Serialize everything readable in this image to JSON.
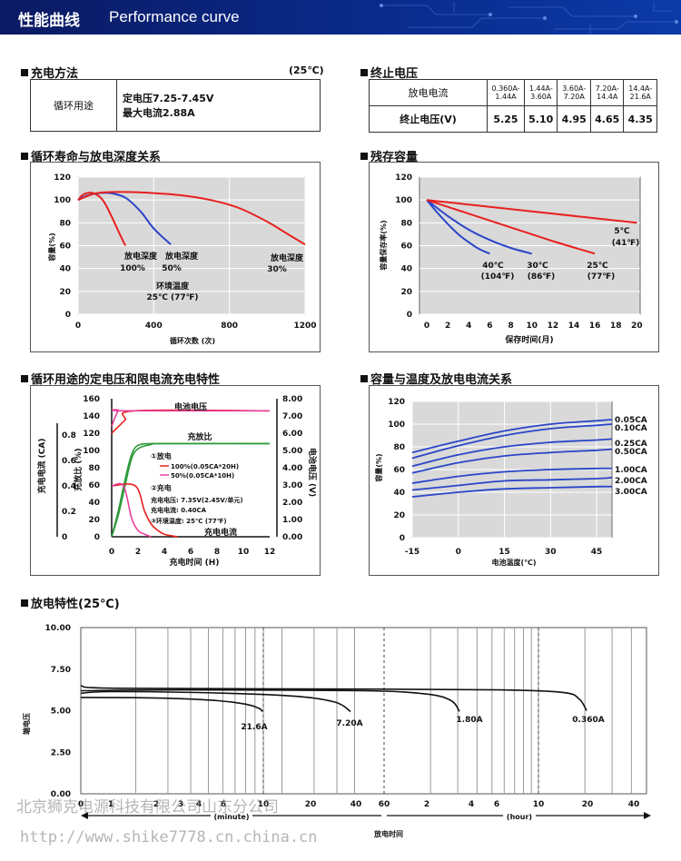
{
  "banner": {
    "title_cn": "性能曲线",
    "title_en": "Performance curve"
  },
  "charging_method": {
    "title": "充电方法",
    "temp": "(25℃)",
    "use": "循环用途",
    "line1": "定电压7.25-7.45V",
    "line2": "最大电流2.88A"
  },
  "cutoff_voltage": {
    "title": "终止电压",
    "row1_label": "放电电流",
    "row2_label": "终止电压(V)",
    "currents": [
      [
        "0.360A-",
        "1.44A"
      ],
      [
        "1.44A-",
        "3.60A"
      ],
      [
        "3.60A-",
        "7.20A"
      ],
      [
        "7.20A-",
        "14.4A"
      ],
      [
        "14.4A-",
        "21.6A"
      ]
    ],
    "voltages": [
      "5.25",
      "5.10",
      "4.95",
      "4.65",
      "4.35"
    ]
  },
  "cycle_life": {
    "title": "循环寿命与放电深度关系",
    "ylabel": "容量(%)",
    "xlabel": "循环次数 (次)",
    "xticks": [
      "0",
      "400",
      "800",
      "1200"
    ],
    "yticks": [
      "0",
      "20",
      "40",
      "60",
      "80",
      "100",
      "120"
    ],
    "labels": [
      "放电深度",
      "100%",
      "放电深度",
      "50%",
      "放电深度",
      "30%"
    ],
    "env1": "环境温度",
    "env2": "25℃ (77℉)"
  },
  "residual": {
    "title": "残存容量",
    "ylabel": "容量保存率(%)",
    "xlabel": "保存时间(月)",
    "xticks": [
      "0",
      "2",
      "4",
      "6",
      "8",
      "10",
      "12",
      "14",
      "16",
      "18",
      "20"
    ],
    "yticks": [
      "0",
      "20",
      "40",
      "60",
      "80",
      "100",
      "120"
    ],
    "labels": [
      "40℃",
      "(104℉)",
      "30℃",
      "(86℉)",
      "25℃",
      "(77℉)",
      "5℃",
      "(41℉)"
    ]
  },
  "charge_char": {
    "title": "循环用途的定电压和限电流充电特性",
    "y1label": "充电电流 (CA)",
    "y2label": "充放比 (%)",
    "y3label": "电池电压 (V)",
    "xlabel": "充电时间 (H)",
    "ca_ticks": [
      "0",
      "0.2",
      "0.4",
      "0.6",
      "0.8"
    ],
    "pct_ticks": [
      "0",
      "20",
      "40",
      "60",
      "80",
      "100",
      "120",
      "140",
      "160"
    ],
    "v_ticks": [
      "0.00",
      "1.00",
      "2.00",
      "3.00",
      "4.00",
      "5.00",
      "6.00",
      "7.00",
      "8.00"
    ],
    "xticks": [
      "0",
      "2",
      "4",
      "6",
      "8",
      "10",
      "12"
    ],
    "lbl_voltage": "电池电压",
    "lbl_ratio": "充放比",
    "lbl_current": "充电电流",
    "legend": [
      "①放电",
      "100%(0.05CA*20H)",
      "50%(0.05CA*10H)",
      "②充电",
      "充电电压: 7.35V(2.45V/单元)",
      "充电电流: 0.40CA",
      "③环境温度: 25℃ (77℉)"
    ]
  },
  "temp_cap": {
    "title": "容量与温度及放电电流关系",
    "ylabel": "容量(%)",
    "xlabel": "电池温度(℃)",
    "xticks": [
      "-15",
      "0",
      "15",
      "30",
      "45"
    ],
    "yticks": [
      "0",
      "20",
      "40",
      "60",
      "80",
      "100",
      "120"
    ],
    "labels": [
      "0.05CA",
      "0.10CA",
      "0.25CA",
      "0.50CA",
      "1.00CA",
      "2.00CA",
      "3.00CA"
    ]
  },
  "discharge": {
    "title": "放电特性(25℃)",
    "ylabel": "端电压",
    "yticks": [
      "0.00",
      "2.50",
      "5.00",
      "7.50",
      "10.00"
    ],
    "min_ticks": [
      "0",
      "1",
      "2",
      "3",
      "4",
      "6",
      "10",
      "20",
      "40",
      "60"
    ],
    "hr_ticks": [
      "2",
      "4",
      "6",
      "10",
      "20",
      "40"
    ],
    "unit_min": "(minute)",
    "unit_hr": "(hour)",
    "xlabel": "放电时间",
    "labels": [
      "21.6A",
      "7.20A",
      "1.80A",
      "0.360A"
    ]
  },
  "watermark": {
    "line1": "北京狮克电源科技有限公司山东分公司",
    "line2": "http://www.shike7778.cn.china.cn"
  },
  "chart_data": [
    {
      "type": "line",
      "title": "循环寿命与放电深度关系",
      "xlabel": "循环次数 (次)",
      "ylabel": "容量(%)",
      "xlim": [
        0,
        1200
      ],
      "ylim": [
        0,
        120
      ],
      "series": [
        {
          "name": "放电深度 100%",
          "x": [
            0,
            30,
            80,
            130,
            170,
            215,
            250
          ],
          "y": [
            100,
            105,
            106,
            100,
            88,
            72,
            60
          ]
        },
        {
          "name": "放电深度 50%",
          "x": [
            0,
            50,
            110,
            170,
            250,
            330,
            400,
            490
          ],
          "y": [
            100,
            104,
            106,
            106,
            102,
            90,
            75,
            61
          ]
        },
        {
          "name": "放电深度 30%",
          "x": [
            0,
            100,
            250,
            400,
            550,
            700,
            850,
            1000,
            1100,
            1200
          ],
          "y": [
            100,
            106,
            107,
            106,
            104,
            100,
            93,
            81,
            71,
            61
          ]
        }
      ]
    },
    {
      "type": "line",
      "title": "残存容量",
      "xlabel": "保存时间(月)",
      "ylabel": "容量保存率(%)",
      "xlim": [
        0,
        20
      ],
      "ylim": [
        0,
        120
      ],
      "series": [
        {
          "name": "40℃",
          "x": [
            0,
            1,
            2,
            3,
            4,
            5,
            6
          ],
          "y": [
            100,
            89,
            79,
            70,
            63,
            57,
            53
          ]
        },
        {
          "name": "30℃",
          "x": [
            0,
            2,
            4,
            6,
            8,
            10
          ],
          "y": [
            100,
            86,
            74,
            65,
            58,
            53
          ]
        },
        {
          "name": "25℃",
          "x": [
            0,
            4,
            8,
            12,
            16
          ],
          "y": [
            100,
            88,
            76,
            64,
            53
          ]
        },
        {
          "name": "5℃",
          "x": [
            0,
            5,
            10,
            15,
            20
          ],
          "y": [
            100,
            95,
            90,
            85,
            80
          ]
        }
      ]
    },
    {
      "type": "line",
      "title": "循环用途的定电压和限电流充电特性",
      "xlabel": "充电时间 (H)",
      "xlim": [
        0,
        12
      ],
      "series": [
        {
          "name": "电池电压",
          "x": [
            0,
            1,
            1.8,
            12
          ],
          "y": [
            120,
            135,
            146,
            146
          ]
        },
        {
          "name": "电池电压",
          "x": [
            0,
            0.5,
            1,
            12
          ],
          "y": [
            128,
            146,
            146,
            146
          ]
        },
        {
          "name": "充放比",
          "x": [
            0,
            0.5,
            1,
            1.5,
            2,
            3,
            4,
            12
          ],
          "y": [
            0,
            25,
            58,
            90,
            102,
            107,
            108,
            108
          ]
        },
        {
          "name": "充放比",
          "x": [
            0,
            0.5,
            1,
            1.5,
            2,
            3,
            4,
            12
          ],
          "y": [
            0,
            30,
            65,
            95,
            106,
            108,
            108,
            108
          ]
        },
        {
          "name": "充电电流",
          "x": [
            0,
            1.8,
            2.5,
            3,
            3.5,
            4,
            5
          ],
          "y": [
            0.4,
            0.4,
            0.2,
            0.1,
            0.05,
            0.02,
            0
          ]
        },
        {
          "name": "充电电流",
          "x": [
            0,
            0.9,
            1.5,
            2,
            2.5,
            3
          ],
          "y": [
            0.4,
            0.4,
            0.15,
            0.05,
            0.02,
            0
          ]
        }
      ]
    },
    {
      "type": "line",
      "title": "容量与温度及放电电流关系",
      "xlabel": "电池温度(℃)",
      "ylabel": "容量(%)",
      "xlim": [
        -15,
        50
      ],
      "ylim": [
        0,
        120
      ],
      "series": [
        {
          "name": "0.05CA",
          "x": [
            -15,
            0,
            15,
            30,
            45,
            50
          ],
          "y": [
            75,
            85,
            94,
            100,
            103,
            104
          ]
        },
        {
          "name": "0.10CA",
          "x": [
            -15,
            0,
            15,
            30,
            45,
            50
          ],
          "y": [
            70,
            81,
            90,
            96,
            99,
            100
          ]
        },
        {
          "name": "0.25CA",
          "x": [
            -15,
            0,
            15,
            30,
            45,
            50
          ],
          "y": [
            63,
            73,
            80,
            84,
            86,
            87
          ]
        },
        {
          "name": "0.50CA",
          "x": [
            -15,
            0,
            15,
            30,
            45,
            50
          ],
          "y": [
            57,
            66,
            72,
            75,
            77,
            78
          ]
        },
        {
          "name": "1.00CA",
          "x": [
            -15,
            0,
            15,
            30,
            45,
            50
          ],
          "y": [
            48,
            54,
            58,
            60,
            61,
            61
          ]
        },
        {
          "name": "2.00CA",
          "x": [
            -15,
            0,
            15,
            30,
            45,
            50
          ],
          "y": [
            42,
            46,
            50,
            51,
            52,
            53
          ]
        },
        {
          "name": "3.00CA",
          "x": [
            -15,
            0,
            15,
            30,
            45,
            50
          ],
          "y": [
            36,
            40,
            43,
            44,
            45,
            45
          ]
        }
      ]
    },
    {
      "type": "line",
      "title": "放电特性(25℃)",
      "xlabel": "放电时间",
      "ylabel": "端电压",
      "ylim": [
        0,
        10
      ],
      "series": [
        {
          "name": "21.6A",
          "x_min": [
            0,
            1,
            2,
            4,
            6,
            8,
            9.5
          ],
          "y": [
            5.8,
            5.78,
            5.75,
            5.65,
            5.5,
            5.3,
            4.95
          ]
        },
        {
          "name": "7.20A",
          "x_min": [
            0,
            1,
            4,
            10,
            20,
            30,
            40
          ],
          "y": [
            6.05,
            6.1,
            6.05,
            5.95,
            5.8,
            5.5,
            4.9
          ]
        },
        {
          "name": "1.80A",
          "x_min": [
            0,
            10,
            60,
            120,
            170,
            190
          ],
          "y": [
            6.2,
            6.25,
            6.2,
            6.0,
            5.5,
            4.9
          ]
        },
        {
          "name": "0.360A",
          "x_min": [
            0,
            60,
            300,
            700,
            1000,
            1150,
            1200
          ],
          "y": [
            6.5,
            6.35,
            6.3,
            6.2,
            6.05,
            5.6,
            5.0
          ]
        }
      ]
    }
  ]
}
